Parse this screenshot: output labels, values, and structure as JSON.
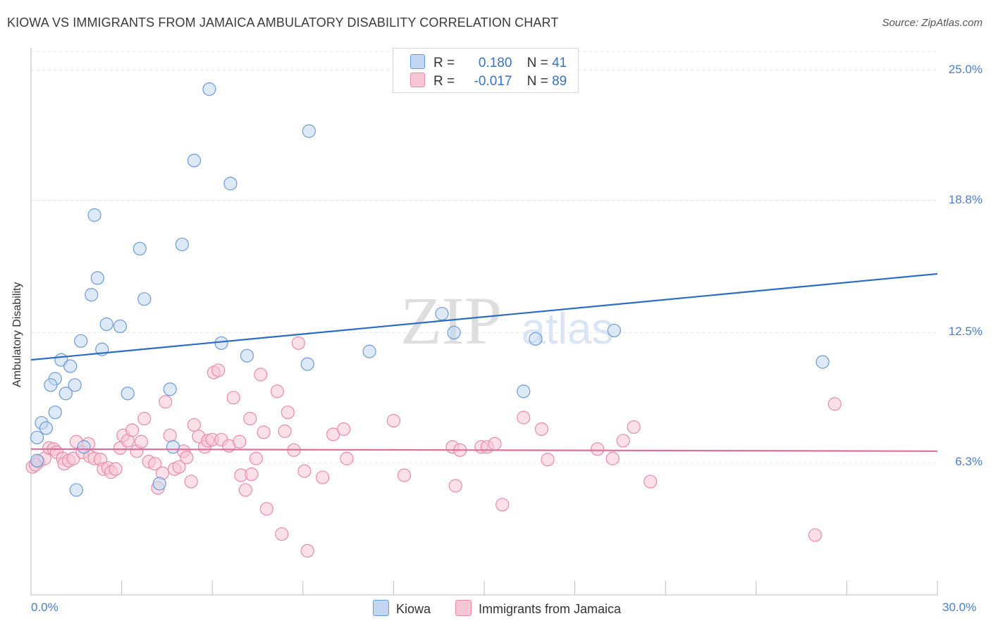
{
  "title": "KIOWA VS IMMIGRANTS FROM JAMAICA AMBULATORY DISABILITY CORRELATION CHART",
  "source": "Source: ZipAtlas.com",
  "watermark": {
    "zip": "ZIP",
    "atlas": "atlas"
  },
  "legend": {
    "rows": [
      {
        "r_label": "R =",
        "r_value": "0.180",
        "n_label": "N =",
        "n_value": "41"
      },
      {
        "r_label": "R =",
        "r_value": "-0.017",
        "n_label": "N =",
        "n_value": "89"
      }
    ]
  },
  "colors": {
    "kiowa_fill": "#c3d7f2",
    "kiowa_stroke": "#6b9ad8",
    "kiowa_line": "#2b6cc4",
    "jamaica_fill": "#f7c7d6",
    "jamaica_stroke": "#e98aaa",
    "jamaica_line": "#e06d9a",
    "tick_text": "#4a7fc9"
  },
  "chart_data": {
    "type": "scatter",
    "title": "KIOWA VS IMMIGRANTS FROM JAMAICA AMBULATORY DISABILITY CORRELATION CHART",
    "xlabel": "",
    "ylabel": "Ambulatory Disability",
    "xlim": [
      0,
      30
    ],
    "ylim": [
      0,
      26
    ],
    "x_tick_labels": [
      "0.0%",
      "30.0%"
    ],
    "y_ticks": [
      6.3,
      12.5,
      18.8,
      25.0
    ],
    "y_tick_labels": [
      "6.3%",
      "12.5%",
      "18.8%",
      "25.0%"
    ],
    "grid": true,
    "legend_position": "top-center",
    "series": [
      {
        "name": "Kiowa",
        "r": 0.18,
        "n": 41,
        "trend": {
          "x": [
            0,
            30
          ],
          "y": [
            11.2,
            15.3
          ]
        },
        "points": [
          [
            5.9,
            24.1
          ],
          [
            9.2,
            22.1
          ],
          [
            5.4,
            20.7
          ],
          [
            6.6,
            19.6
          ],
          [
            2.1,
            18.1
          ],
          [
            3.6,
            16.5
          ],
          [
            5.0,
            16.7
          ],
          [
            2.2,
            15.1
          ],
          [
            2.0,
            14.3
          ],
          [
            3.75,
            14.1
          ],
          [
            2.5,
            12.9
          ],
          [
            2.95,
            12.8
          ],
          [
            1.65,
            12.1
          ],
          [
            2.35,
            11.7
          ],
          [
            6.3,
            12.0
          ],
          [
            7.15,
            11.4
          ],
          [
            1.0,
            11.2
          ],
          [
            1.3,
            10.9
          ],
          [
            9.15,
            11.0
          ],
          [
            11.2,
            11.6
          ],
          [
            0.8,
            10.3
          ],
          [
            0.65,
            10.0
          ],
          [
            1.45,
            10.0
          ],
          [
            1.15,
            9.6
          ],
          [
            3.2,
            9.6
          ],
          [
            4.6,
            9.8
          ],
          [
            0.8,
            8.7
          ],
          [
            0.35,
            8.2
          ],
          [
            0.5,
            7.95
          ],
          [
            0.2,
            7.5
          ],
          [
            1.75,
            7.05
          ],
          [
            4.7,
            7.05
          ],
          [
            0.2,
            6.4
          ],
          [
            1.5,
            5.0
          ],
          [
            4.25,
            5.3
          ],
          [
            13.6,
            13.4
          ],
          [
            14.0,
            12.5
          ],
          [
            16.7,
            12.2
          ],
          [
            19.3,
            12.6
          ],
          [
            16.3,
            9.7
          ],
          [
            26.2,
            11.1
          ]
        ]
      },
      {
        "name": "Immigrants from Jamaica",
        "r": -0.017,
        "n": 89,
        "trend": {
          "x": [
            0,
            30
          ],
          "y": [
            6.95,
            6.85
          ]
        },
        "points": [
          [
            0.05,
            6.1
          ],
          [
            0.25,
            6.35
          ],
          [
            0.45,
            6.5
          ],
          [
            0.6,
            7.0
          ],
          [
            0.75,
            6.95
          ],
          [
            0.85,
            6.8
          ],
          [
            1.05,
            6.5
          ],
          [
            1.1,
            6.25
          ],
          [
            1.25,
            6.4
          ],
          [
            1.4,
            6.5
          ],
          [
            1.5,
            7.3
          ],
          [
            1.7,
            6.8
          ],
          [
            1.9,
            7.2
          ],
          [
            1.95,
            6.6
          ],
          [
            2.1,
            6.5
          ],
          [
            2.3,
            6.45
          ],
          [
            2.4,
            6.0
          ],
          [
            2.55,
            6.05
          ],
          [
            2.65,
            5.85
          ],
          [
            2.8,
            6.0
          ],
          [
            2.95,
            7.0
          ],
          [
            3.05,
            7.6
          ],
          [
            3.2,
            7.35
          ],
          [
            3.35,
            7.85
          ],
          [
            3.5,
            6.85
          ],
          [
            3.65,
            7.3
          ],
          [
            3.75,
            8.4
          ],
          [
            3.9,
            6.35
          ],
          [
            4.1,
            6.25
          ],
          [
            4.2,
            5.1
          ],
          [
            4.35,
            5.8
          ],
          [
            4.45,
            9.2
          ],
          [
            4.6,
            7.6
          ],
          [
            4.75,
            6.0
          ],
          [
            4.9,
            6.1
          ],
          [
            5.05,
            6.85
          ],
          [
            5.15,
            6.55
          ],
          [
            5.3,
            5.4
          ],
          [
            5.4,
            8.1
          ],
          [
            5.55,
            7.55
          ],
          [
            5.75,
            7.05
          ],
          [
            5.85,
            7.35
          ],
          [
            6.0,
            7.4
          ],
          [
            6.05,
            10.6
          ],
          [
            6.2,
            10.7
          ],
          [
            6.3,
            7.4
          ],
          [
            6.55,
            7.1
          ],
          [
            6.7,
            9.4
          ],
          [
            6.9,
            7.3
          ],
          [
            6.95,
            5.7
          ],
          [
            7.1,
            5.0
          ],
          [
            7.25,
            8.4
          ],
          [
            7.3,
            5.75
          ],
          [
            7.45,
            6.5
          ],
          [
            7.6,
            10.5
          ],
          [
            7.7,
            7.75
          ],
          [
            7.8,
            4.1
          ],
          [
            8.15,
            9.7
          ],
          [
            8.3,
            2.9
          ],
          [
            8.4,
            7.8
          ],
          [
            8.5,
            8.7
          ],
          [
            8.7,
            6.9
          ],
          [
            8.85,
            12.0
          ],
          [
            9.05,
            5.9
          ],
          [
            9.15,
            2.1
          ],
          [
            9.65,
            5.6
          ],
          [
            10.0,
            7.65
          ],
          [
            10.35,
            7.9
          ],
          [
            10.45,
            6.5
          ],
          [
            12.0,
            8.3
          ],
          [
            12.35,
            5.7
          ],
          [
            13.95,
            7.05
          ],
          [
            14.05,
            5.2
          ],
          [
            14.2,
            6.9
          ],
          [
            14.9,
            7.05
          ],
          [
            15.1,
            7.05
          ],
          [
            15.35,
            7.2
          ],
          [
            15.6,
            4.3
          ],
          [
            16.3,
            8.45
          ],
          [
            16.9,
            7.9
          ],
          [
            17.1,
            6.45
          ],
          [
            18.75,
            6.95
          ],
          [
            19.25,
            6.5
          ],
          [
            19.6,
            7.35
          ],
          [
            19.95,
            8.0
          ],
          [
            20.5,
            5.4
          ],
          [
            25.95,
            2.85
          ],
          [
            26.6,
            9.1
          ],
          [
            0.15,
            6.2
          ]
        ]
      }
    ]
  },
  "bottom_legend": [
    {
      "label": "Kiowa"
    },
    {
      "label": "Immigrants from Jamaica"
    }
  ]
}
